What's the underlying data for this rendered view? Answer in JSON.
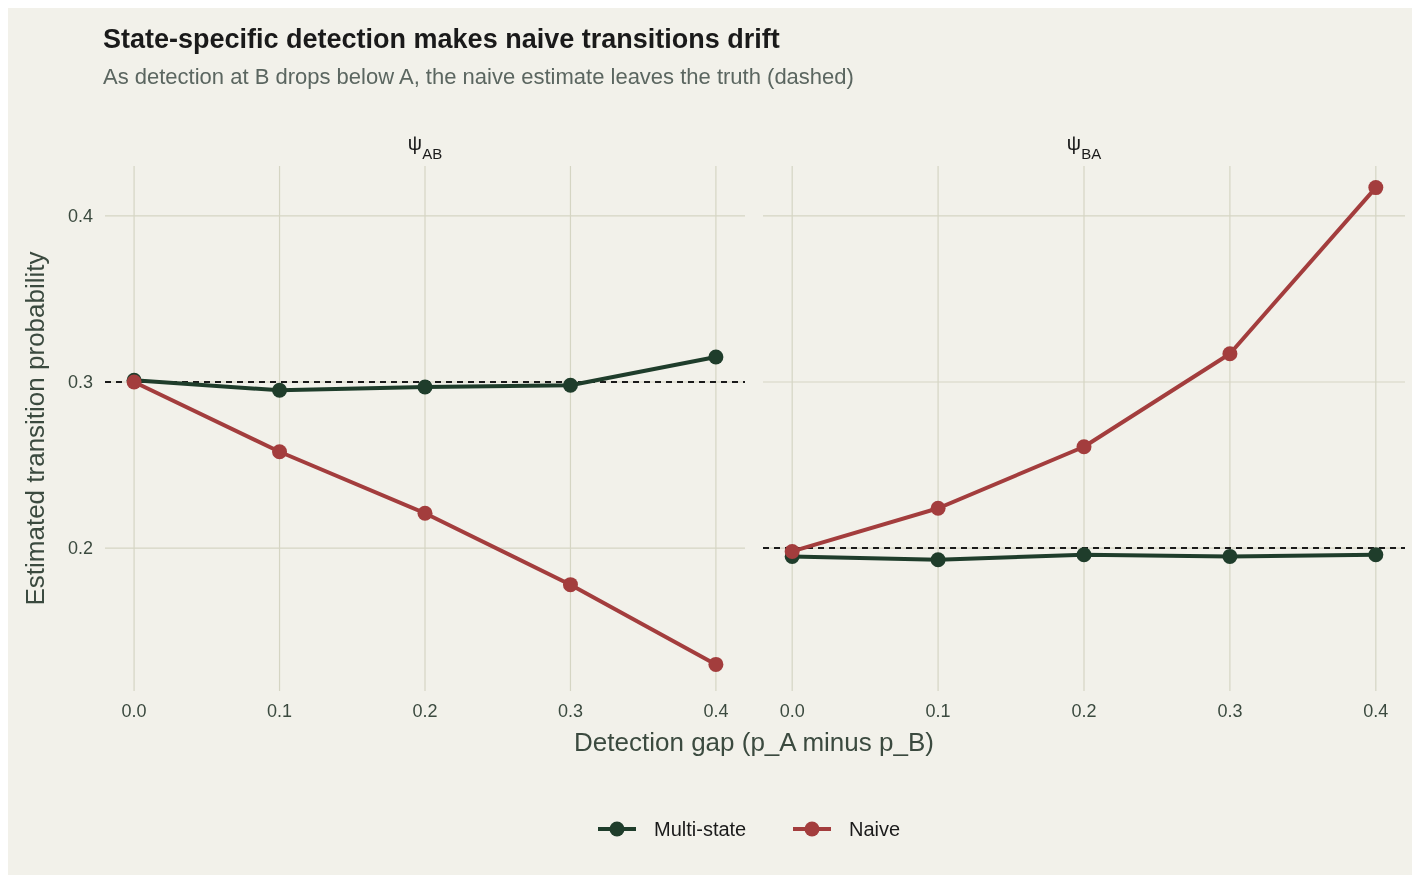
{
  "chart_data": [
    {
      "type": "line",
      "title": "State-specific detection makes naive transitions drift",
      "subtitle": "As detection at B drops below A, the naive estimate leaves the truth (dashed)",
      "annotations": [
        "ψ$_{AB}$"
      ],
      "xlabel": "Detection gap (p_A minus p_B)",
      "ylabel": "Estimated transition probability",
      "x": [
        0,
        0.1,
        0.2,
        0.3,
        0.4
      ],
      "xlim": [
        -0.02,
        0.42
      ],
      "xticks": [
        {
          "value": 0,
          "label": "0.0"
        },
        0.1,
        0.2,
        0.3,
        0.4
      ],
      "ylim": [
        0.114,
        0.43
      ],
      "yticks": [
        0.2,
        0.3,
        0.4
      ],
      "grid": true,
      "legend": "bottom",
      "marker": "circle",
      "line_style": "solid",
      "series": [
        {
          "name": "Multi-state",
          "color": "#1f3d2b",
          "values": [
            0.301,
            0.295,
            0.297,
            0.298,
            0.315
          ]
        },
        {
          "name": "Naive",
          "color": "#a33d3d",
          "values": [
            0.3,
            0.258,
            0.221,
            0.178,
            0.13
          ]
        }
      ],
      "ref_lines": [
        {
          "axis": "y",
          "value": 0.3,
          "color": "#1a1a1a",
          "line_style": "dashed"
        }
      ]
    },
    {
      "type": "line",
      "annotations": [
        "ψ$_{BA}$"
      ],
      "x": [
        0,
        0.1,
        0.2,
        0.3,
        0.4
      ],
      "xlim": [
        -0.02,
        0.42
      ],
      "xticks": [
        {
          "value": 0,
          "label": "0.0"
        },
        0.1,
        0.2,
        0.3,
        0.4
      ],
      "ylim": [
        0.114,
        0.43
      ],
      "yticks": [
        0.2,
        0.3,
        0.4
      ],
      "tick_labels": "x",
      "grid": true,
      "marker": "circle",
      "line_style": "solid",
      "series": [
        {
          "color": "#1f3d2b",
          "values": [
            0.195,
            0.193,
            0.196,
            0.195,
            0.196
          ]
        },
        {
          "color": "#a33d3d",
          "values": [
            0.198,
            0.224,
            0.261,
            0.317,
            0.417
          ]
        }
      ],
      "ref_lines": [
        {
          "axis": "y",
          "value": 0.2,
          "color": "#1a1a1a",
          "line_style": "dashed"
        }
      ]
    }
  ]
}
